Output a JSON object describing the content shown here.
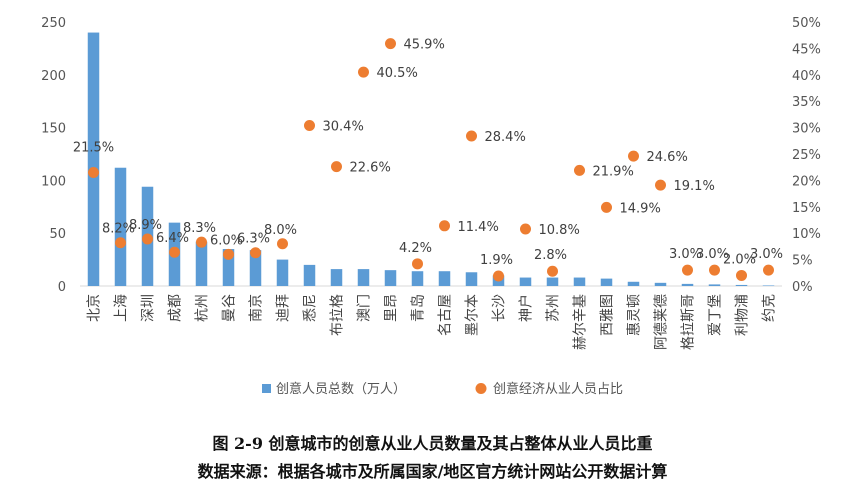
{
  "caption": {
    "title": "图 2-9 创意城市的创意从业人员数量及其占整体从业人员比重",
    "source": "数据来源：根据各城市及所属国家/地区官方统计网站公开数据计算"
  },
  "colors": {
    "bar": "#5b9bd5",
    "dot": "#ed7d31",
    "grid": "#d9d9d9"
  },
  "chart_data": {
    "type": "bar+scatter",
    "categories": [
      "北京",
      "上海",
      "深圳",
      "成都",
      "杭州",
      "曼谷",
      "南京",
      "迪拜",
      "悉尼",
      "布拉格",
      "澳门",
      "里昂",
      "青岛",
      "名古屋",
      "墨尔本",
      "长沙",
      "神户",
      "苏州",
      "赫尔辛基",
      "西雅图",
      "惠灵顿",
      "阿德莱德",
      "格拉斯哥",
      "爱丁堡",
      "利物浦",
      "约克"
    ],
    "y_left": {
      "min": 0,
      "max": 250,
      "ticks": [
        0,
        50,
        100,
        150,
        200,
        250
      ]
    },
    "y_right": {
      "min": 0,
      "max": 50,
      "ticks": [
        "0%",
        "5%",
        "10%",
        "15%",
        "20%",
        "25%",
        "30%",
        "35%",
        "40%",
        "45%",
        "50%"
      ]
    },
    "grid": false,
    "legend_position": "bottom",
    "series": [
      {
        "name": "创意人员总数（万人）",
        "kind": "bar",
        "axis": "left",
        "values": [
          240,
          112,
          94,
          60,
          42,
          35,
          34,
          25,
          20,
          16,
          16,
          15,
          14,
          14,
          13,
          10,
          8,
          8,
          8,
          7,
          4,
          3,
          2,
          1.5,
          1,
          0.5
        ]
      },
      {
        "name": "创意经济从业人员占比",
        "kind": "scatter",
        "axis": "right",
        "values": [
          21.5,
          8.2,
          8.9,
          6.4,
          8.3,
          6.0,
          6.3,
          8.0,
          30.4,
          22.6,
          40.5,
          45.9,
          4.2,
          11.4,
          28.4,
          1.9,
          10.8,
          2.8,
          21.9,
          14.9,
          24.6,
          19.1,
          3.0,
          3.0,
          2.0,
          3.0
        ],
        "labels": [
          "21.5%",
          "8.2%",
          "8.9%",
          "6.4%",
          "8.3%",
          "6.0%",
          "6.3%",
          "8.0%",
          "30.4%",
          "22.6%",
          "40.5%",
          "45.9%",
          "4.2%",
          "11.4%",
          "28.4%",
          "1.9%",
          "10.8%",
          "2.8%",
          "21.9%",
          "14.9%",
          "24.6%",
          "19.1%",
          "3.0%",
          "3.0%",
          "2.0%",
          "3.0%"
        ]
      }
    ]
  }
}
